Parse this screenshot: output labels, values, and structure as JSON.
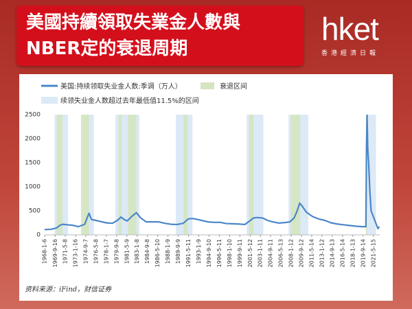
{
  "header": {
    "title_lines": [
      "美國持續領取失業金人數與",
      "NBER定的衰退周期"
    ],
    "logo": "hket",
    "logo_sub": "香港經濟日報"
  },
  "chart_data": {
    "type": "line",
    "source": "资料来源：iFind，财信证券",
    "x": [
      1968.0,
      1969.0,
      1969.9,
      1970.5,
      1971.0,
      1971.6,
      1972.5,
      1973.5,
      1974.5,
      1975.2,
      1975.6,
      1976.3,
      1977.0,
      1978.0,
      1979.0,
      1979.8,
      1980.4,
      1980.9,
      1981.4,
      1982.3,
      1982.9,
      1983.6,
      1984.5,
      1985.5,
      1986.5,
      1987.5,
      1988.5,
      1989.5,
      1990.5,
      1991.3,
      1992.0,
      1992.8,
      1993.5,
      1994.5,
      1995.5,
      1996.5,
      1997.5,
      1998.5,
      1999.5,
      2000.5,
      2001.2,
      2001.9,
      2002.5,
      2003.4,
      2004.2,
      2005.0,
      2006.0,
      2007.0,
      2007.8,
      2008.5,
      2009.0,
      2009.4,
      2009.8,
      2010.5,
      2011.5,
      2012.5,
      2013.5,
      2014.5,
      2015.5,
      2016.5,
      2017.5,
      2018.5,
      2019.5,
      2020.15,
      2020.25,
      2020.35,
      2020.45,
      2020.6,
      2020.8,
      2021.0,
      2021.3,
      2021.6,
      2021.9,
      2022.1,
      2022.35
    ],
    "series": [
      {
        "name": "美国:持续领取失业金人数:季调（万人）",
        "color": "#4a86c8",
        "values": [
          110,
          115,
          140,
          200,
          220,
          210,
          200,
          170,
          220,
          450,
          320,
          300,
          280,
          250,
          240,
          300,
          370,
          320,
          290,
          400,
          460,
          350,
          270,
          270,
          270,
          240,
          220,
          215,
          240,
          330,
          340,
          320,
          300,
          270,
          260,
          260,
          235,
          230,
          225,
          215,
          280,
          350,
          360,
          350,
          300,
          270,
          245,
          255,
          270,
          350,
          500,
          660,
          600,
          470,
          380,
          330,
          300,
          250,
          225,
          210,
          195,
          180,
          170,
          170,
          1800,
          2490,
          1800,
          1500,
          900,
          500,
          400,
          300,
          200,
          130,
          170
        ]
      }
    ],
    "bands": [
      {
        "name": "衰退区间",
        "color": "#d4e5bf",
        "ranges": [
          [
            1969.95,
            1970.9
          ],
          [
            1973.9,
            1975.2
          ],
          [
            1980.0,
            1980.5
          ],
          [
            1981.55,
            1982.9
          ],
          [
            1990.55,
            1991.2
          ],
          [
            2001.2,
            2001.9
          ],
          [
            2007.95,
            2009.5
          ],
          [
            2020.15,
            2020.35
          ]
        ]
      },
      {
        "name": "续领失业金人数超过去年最低值11.5%的区间",
        "color": "#dce9f6",
        "ranges": [
          [
            1969.6,
            1971.8
          ],
          [
            1974.3,
            1976.0
          ],
          [
            1979.5,
            1983.4
          ],
          [
            1989.3,
            1992.0
          ],
          [
            2000.8,
            2003.5
          ],
          [
            2007.6,
            2010.8
          ],
          [
            2020.2,
            2021.8
          ]
        ]
      }
    ],
    "xlim": [
      1968.0,
      2022.4
    ],
    "xticks": [
      {
        "value": 1968.01,
        "label": "1968-1-6"
      },
      {
        "value": 1969.71,
        "label": "1969-9-16"
      },
      {
        "value": 1971.35,
        "label": "1971-5-8"
      },
      {
        "value": 1973.04,
        "label": "1973-1-16"
      },
      {
        "value": 1974.68,
        "label": "1974-9-7"
      },
      {
        "value": 1976.35,
        "label": "1976-5-8"
      },
      {
        "value": 1978.02,
        "label": "1978-1-7"
      },
      {
        "value": 1979.69,
        "label": "1979-9-8"
      },
      {
        "value": 1981.35,
        "label": "1981-5-9"
      },
      {
        "value": 1983.02,
        "label": "1983-1-8"
      },
      {
        "value": 1984.69,
        "label": "1984-9-8"
      },
      {
        "value": 1986.36,
        "label": "1986-5-10"
      },
      {
        "value": 1988.02,
        "label": "1988-1-9"
      },
      {
        "value": 1989.69,
        "label": "1989-9-9"
      },
      {
        "value": 1991.36,
        "label": "1991-5-11"
      },
      {
        "value": 1993.02,
        "label": "1993-1-9"
      },
      {
        "value": 1994.69,
        "label": "1994-9-10"
      },
      {
        "value": 1996.36,
        "label": "1996-5-11"
      },
      {
        "value": 1998.03,
        "label": "1998-1-10"
      },
      {
        "value": 1999.69,
        "label": "1999-9-11"
      },
      {
        "value": 2001.36,
        "label": "2001-5-12"
      },
      {
        "value": 2003.03,
        "label": "2003-1-11"
      },
      {
        "value": 2004.69,
        "label": "2004-9-11"
      },
      {
        "value": 2006.36,
        "label": "2006-5-13"
      },
      {
        "value": 2008.03,
        "label": "2008-1-12"
      },
      {
        "value": 2009.7,
        "label": "2009-9-12"
      },
      {
        "value": 2011.36,
        "label": "2011-5-14"
      },
      {
        "value": 2013.03,
        "label": "2013-1-12"
      },
      {
        "value": 2014.7,
        "label": "2014-9-13"
      },
      {
        "value": 2016.37,
        "label": "2016-5-14"
      },
      {
        "value": 2018.03,
        "label": "2018-1-13"
      },
      {
        "value": 2019.7,
        "label": "2019-9-14"
      },
      {
        "value": 2021.37,
        "label": "2021-5-15"
      }
    ],
    "ylim": [
      0,
      2500
    ],
    "yticks": [
      0,
      500,
      1000,
      1500,
      2000,
      2500
    ],
    "grid": false
  }
}
